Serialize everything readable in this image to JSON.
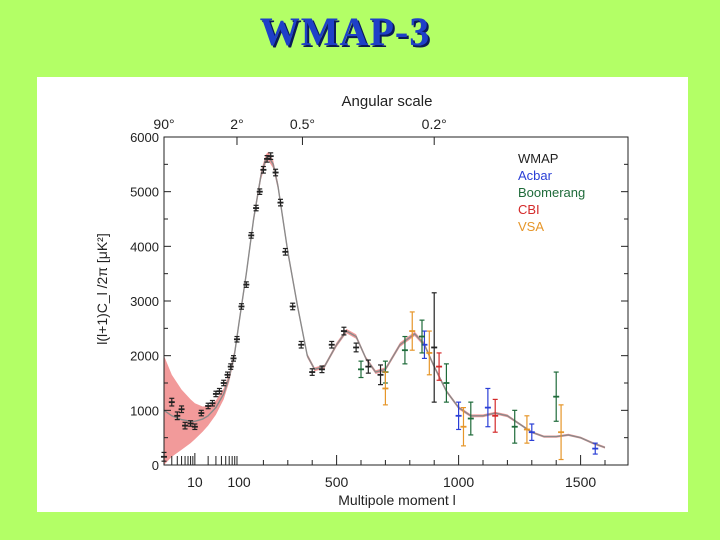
{
  "slide": {
    "title": "WMAP-3"
  },
  "chart_data": {
    "type": "scatter",
    "title": "Angular scale",
    "xlabel": "Multipole moment l",
    "ylabel": "l(l+1)C_l /2π [μK²]",
    "ylim": [
      0,
      6000
    ],
    "yticks": [
      0,
      1000,
      2000,
      3000,
      4000,
      5000,
      6000
    ],
    "xticks": [
      {
        "label": "10",
        "l": 10
      },
      {
        "label": "100",
        "l": 100
      },
      {
        "label": "500",
        "l": 500
      },
      {
        "label": "1000",
        "l": 1000
      },
      {
        "label": "1500",
        "l": 1500
      }
    ],
    "top_ticks": [
      {
        "label": "90°",
        "l": 2
      },
      {
        "label": "2°",
        "l": 90
      },
      {
        "label": "0.5°",
        "l": 360
      },
      {
        "label": "0.2°",
        "l": 900
      }
    ],
    "legend": {
      "position": "top-right",
      "items": [
        {
          "name": "WMAP",
          "color": "#222222"
        },
        {
          "name": "Acbar",
          "color": "#2a3fd6"
        },
        {
          "name": "Boomerang",
          "color": "#1f6b3a"
        },
        {
          "name": "CBI",
          "color": "#d42a2a"
        },
        {
          "name": "VSA",
          "color": "#e6962a"
        }
      ]
    },
    "model": {
      "l": [
        2,
        3,
        5,
        8,
        10,
        15,
        20,
        30,
        45,
        60,
        80,
        100,
        130,
        160,
        190,
        210,
        220,
        240,
        260,
        300,
        340,
        380,
        410,
        450,
        500,
        540,
        580,
        620,
        660,
        700,
        760,
        820,
        860,
        900,
        950,
        1000,
        1050,
        1100,
        1150,
        1200,
        1250,
        1300,
        1350,
        1400,
        1450,
        1500,
        1550,
        1600
      ],
      "d": [
        1000,
        900,
        830,
        800,
        800,
        840,
        900,
        1050,
        1300,
        1600,
        2050,
        2600,
        3500,
        4500,
        5300,
        5600,
        5650,
        5500,
        5100,
        3900,
        2900,
        2000,
        1750,
        1800,
        2200,
        2450,
        2350,
        1950,
        1700,
        1750,
        2200,
        2400,
        2200,
        1800,
        1350,
        1050,
        900,
        900,
        950,
        900,
        750,
        600,
        520,
        520,
        550,
        500,
        400,
        320
      ],
      "band": [
        1000,
        750,
        550,
        400,
        330,
        230,
        180,
        130,
        100,
        80,
        70,
        65,
        65,
        70,
        80,
        80,
        80,
        75,
        70,
        60,
        50,
        40,
        35,
        35,
        40,
        40,
        40,
        35,
        35,
        35,
        40,
        40,
        40,
        35,
        30,
        30,
        25,
        25,
        25,
        25,
        20,
        20,
        20,
        20,
        20,
        20,
        20,
        20
      ]
    },
    "series": [
      {
        "name": "WMAP",
        "points": [
          {
            "l": 2,
            "y": 150,
            "e": 80
          },
          {
            "l": 3,
            "y": 1150,
            "e": 70
          },
          {
            "l": 4,
            "y": 900,
            "e": 70
          },
          {
            "l": 5,
            "y": 1020,
            "e": 60
          },
          {
            "l": 6,
            "y": 720,
            "e": 60
          },
          {
            "l": 8,
            "y": 760,
            "e": 50
          },
          {
            "l": 10,
            "y": 700,
            "e": 50
          },
          {
            "l": 14,
            "y": 950,
            "e": 50
          },
          {
            "l": 20,
            "y": 1080,
            "e": 50
          },
          {
            "l": 25,
            "y": 1130,
            "e": 50
          },
          {
            "l": 30,
            "y": 1300,
            "e": 50
          },
          {
            "l": 36,
            "y": 1350,
            "e": 50
          },
          {
            "l": 45,
            "y": 1500,
            "e": 50
          },
          {
            "l": 55,
            "y": 1650,
            "e": 50
          },
          {
            "l": 65,
            "y": 1800,
            "e": 50
          },
          {
            "l": 75,
            "y": 1950,
            "e": 50
          },
          {
            "l": 90,
            "y": 2300,
            "e": 50
          },
          {
            "l": 110,
            "y": 2900,
            "e": 50
          },
          {
            "l": 130,
            "y": 3300,
            "e": 50
          },
          {
            "l": 150,
            "y": 4200,
            "e": 50
          },
          {
            "l": 170,
            "y": 4700,
            "e": 50
          },
          {
            "l": 185,
            "y": 5000,
            "e": 50
          },
          {
            "l": 200,
            "y": 5400,
            "e": 60
          },
          {
            "l": 215,
            "y": 5600,
            "e": 60
          },
          {
            "l": 230,
            "y": 5650,
            "e": 60
          },
          {
            "l": 250,
            "y": 5350,
            "e": 60
          },
          {
            "l": 270,
            "y": 4800,
            "e": 60
          },
          {
            "l": 290,
            "y": 3900,
            "e": 60
          },
          {
            "l": 320,
            "y": 2900,
            "e": 60
          },
          {
            "l": 355,
            "y": 2200,
            "e": 60
          },
          {
            "l": 400,
            "y": 1700,
            "e": 60
          },
          {
            "l": 440,
            "y": 1750,
            "e": 60
          },
          {
            "l": 480,
            "y": 2200,
            "e": 60
          },
          {
            "l": 530,
            "y": 2450,
            "e": 70
          },
          {
            "l": 580,
            "y": 2150,
            "e": 80
          },
          {
            "l": 630,
            "y": 1800,
            "e": 120
          },
          {
            "l": 680,
            "y": 1650,
            "e": 180
          },
          {
            "l": 900,
            "y": 2150,
            "e": 1000
          }
        ]
      },
      {
        "name": "Acbar",
        "points": [
          {
            "l": 860,
            "y": 2200,
            "e": 250
          },
          {
            "l": 1000,
            "y": 900,
            "e": 250
          },
          {
            "l": 1120,
            "y": 1050,
            "e": 350
          },
          {
            "l": 1300,
            "y": 600,
            "e": 150
          },
          {
            "l": 1560,
            "y": 300,
            "e": 100
          }
        ]
      },
      {
        "name": "Boomerang",
        "points": [
          {
            "l": 600,
            "y": 1750,
            "e": 150
          },
          {
            "l": 700,
            "y": 1700,
            "e": 200
          },
          {
            "l": 780,
            "y": 2100,
            "e": 250
          },
          {
            "l": 850,
            "y": 2350,
            "e": 300
          },
          {
            "l": 950,
            "y": 1500,
            "e": 350
          },
          {
            "l": 1050,
            "y": 850,
            "e": 300
          },
          {
            "l": 1230,
            "y": 700,
            "e": 300
          },
          {
            "l": 1400,
            "y": 1250,
            "e": 450
          }
        ]
      },
      {
        "name": "CBI",
        "points": [
          {
            "l": 920,
            "y": 1800,
            "e": 250
          },
          {
            "l": 1150,
            "y": 900,
            "e": 300
          }
        ]
      },
      {
        "name": "VSA",
        "points": [
          {
            "l": 700,
            "y": 1400,
            "e": 300
          },
          {
            "l": 810,
            "y": 2450,
            "e": 350
          },
          {
            "l": 880,
            "y": 2050,
            "e": 400
          },
          {
            "l": 1020,
            "y": 700,
            "e": 350
          },
          {
            "l": 1280,
            "y": 650,
            "e": 250
          },
          {
            "l": 1420,
            "y": 600,
            "e": 500
          }
        ]
      }
    ]
  }
}
